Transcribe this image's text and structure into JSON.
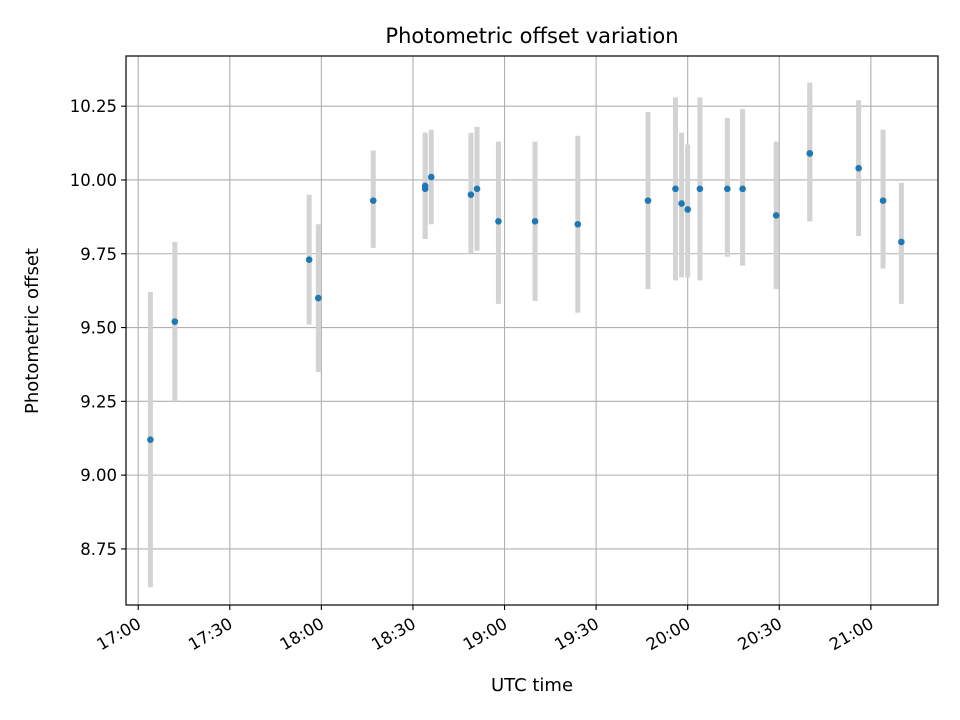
{
  "chart_data": {
    "type": "scatter",
    "title": "Photometric offset variation",
    "xlabel": "UTC time",
    "ylabel": "Photometric offset",
    "x_tick_labels": [
      "17:00",
      "17:30",
      "18:00",
      "18:30",
      "19:00",
      "19:30",
      "20:00",
      "20:30",
      "21:00"
    ],
    "y_tick_labels": [
      "8.75",
      "9.00",
      "9.25",
      "9.50",
      "9.75",
      "10.00",
      "10.25"
    ],
    "xlim": [
      "16:56",
      "21:22"
    ],
    "ylim": [
      8.56,
      10.42
    ],
    "grid": true,
    "error_bar_color": "#d3d3d3",
    "point_color": "#1f77b4",
    "series": [
      {
        "points": [
          {
            "x": "17:04",
            "y": 9.12,
            "err_low": 8.62,
            "err_high": 9.62
          },
          {
            "x": "17:12",
            "y": 9.52,
            "err_low": 9.25,
            "err_high": 9.79
          },
          {
            "x": "17:56",
            "y": 9.73,
            "err_low": 9.51,
            "err_high": 9.95
          },
          {
            "x": "17:59",
            "y": 9.6,
            "err_low": 9.35,
            "err_high": 9.85
          },
          {
            "x": "18:17",
            "y": 9.93,
            "err_low": 9.77,
            "err_high": 10.1
          },
          {
            "x": "18:34",
            "y": 9.97,
            "err_low": 9.8,
            "err_high": 10.16
          },
          {
            "x": "18:34",
            "y": 9.98,
            "err_low": 9.8,
            "err_high": 10.16
          },
          {
            "x": "18:36",
            "y": 10.01,
            "err_low": 9.85,
            "err_high": 10.17
          },
          {
            "x": "18:49",
            "y": 9.95,
            "err_low": 9.75,
            "err_high": 10.16
          },
          {
            "x": "18:51",
            "y": 9.97,
            "err_low": 9.76,
            "err_high": 10.18
          },
          {
            "x": "18:58",
            "y": 9.86,
            "err_low": 9.58,
            "err_high": 10.13
          },
          {
            "x": "19:10",
            "y": 9.86,
            "err_low": 9.59,
            "err_high": 10.13
          },
          {
            "x": "19:24",
            "y": 9.85,
            "err_low": 9.55,
            "err_high": 10.15
          },
          {
            "x": "19:47",
            "y": 9.93,
            "err_low": 9.63,
            "err_high": 10.23
          },
          {
            "x": "19:56",
            "y": 9.97,
            "err_low": 9.66,
            "err_high": 10.28
          },
          {
            "x": "19:58",
            "y": 9.92,
            "err_low": 9.67,
            "err_high": 10.16
          },
          {
            "x": "20:00",
            "y": 9.9,
            "err_low": 9.67,
            "err_high": 10.12
          },
          {
            "x": "20:04",
            "y": 9.97,
            "err_low": 9.66,
            "err_high": 10.28
          },
          {
            "x": "20:13",
            "y": 9.97,
            "err_low": 9.74,
            "err_high": 10.21
          },
          {
            "x": "20:18",
            "y": 9.97,
            "err_low": 9.71,
            "err_high": 10.24
          },
          {
            "x": "20:29",
            "y": 9.88,
            "err_low": 9.63,
            "err_high": 10.13
          },
          {
            "x": "20:40",
            "y": 10.09,
            "err_low": 9.86,
            "err_high": 10.31
          },
          {
            "x": "20:40",
            "y": 10.09,
            "err_low": 9.86,
            "err_high": 10.33
          },
          {
            "x": "20:56",
            "y": 10.04,
            "err_low": 9.81,
            "err_high": 10.27
          },
          {
            "x": "21:04",
            "y": 9.93,
            "err_low": 9.7,
            "err_high": 10.17
          },
          {
            "x": "21:10",
            "y": 9.79,
            "err_low": 9.58,
            "err_high": 9.99
          }
        ]
      }
    ]
  }
}
